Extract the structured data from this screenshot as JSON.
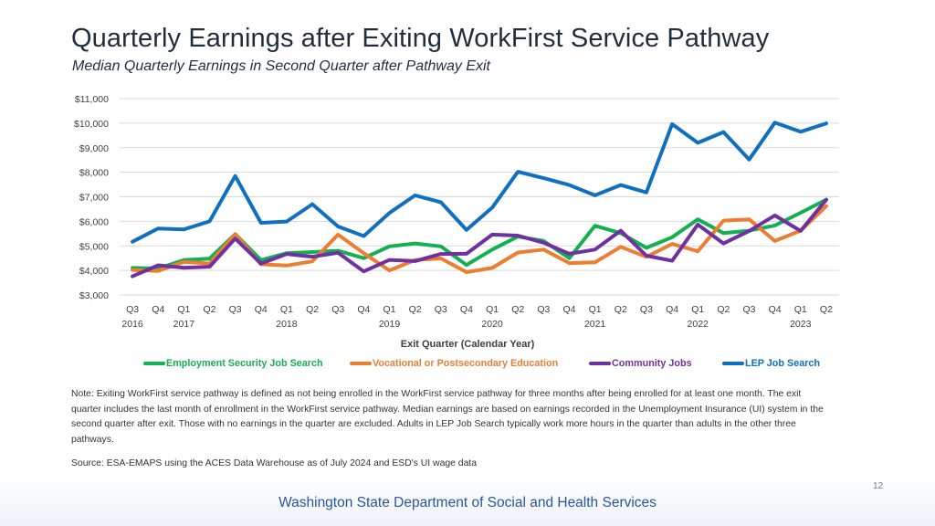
{
  "title": "Quarterly Earnings after Exiting WorkFirst Service Pathway",
  "subtitle": "Median Quarterly Earnings in Second Quarter after Pathway Exit",
  "note": "Note: Exiting WorkFirst service pathway is defined as not being enrolled in the WorkFirst service pathway for three months after being enrolled for at least one month. The exit quarter includes the last month of enrollment in the WorkFirst service pathway. Median earnings are based on earnings recorded in the Unemployment Insurance (UI) system in the second quarter after exit. Those with no earnings in the quarter are excluded. Adults in LEP Job Search typically work more hours in the quarter than adults in the other three pathways.",
  "source": "Source: ESA-EMAPS using the ACES Data Warehouse as of July 2024 and ESD's UI wage data",
  "page_number": "12",
  "footer": "Washington State Department of Social and Health Services",
  "colors": {
    "Employment Security Job Search": "#12b050",
    "Vocational or Postsecondary Education": "#ed7d31",
    "Community Jobs": "#7030a0",
    "LEP Job Search": "#0f6fc0",
    "grid": "#d9d9d9",
    "axis_text": "#404040",
    "footer_text": "#2a55a0",
    "footer_band": "#eef1f7"
  },
  "chart_data": {
    "type": "line",
    "title": "Quarterly Earnings after Exiting WorkFirst Service Pathway",
    "xlabel": "Exit Quarter (Calendar Year)",
    "ylabel": "",
    "ylim": [
      3000,
      11000
    ],
    "yticks": [
      3000,
      4000,
      5000,
      6000,
      7000,
      8000,
      9000,
      10000,
      11000
    ],
    "ytick_labels": [
      "$3,000",
      "$4,000",
      "$5,000",
      "$6,000",
      "$7,000",
      "$8,000",
      "$9,000",
      "$10,000",
      "$11,000"
    ],
    "grid": true,
    "legend": "bottom",
    "categories": [
      "Q3",
      "Q4",
      "Q1",
      "Q2",
      "Q3",
      "Q4",
      "Q1",
      "Q2",
      "Q3",
      "Q4",
      "Q1",
      "Q2",
      "Q3",
      "Q4",
      "Q1",
      "Q2",
      "Q3",
      "Q4",
      "Q1",
      "Q2",
      "Q3",
      "Q4",
      "Q1",
      "Q2",
      "Q3",
      "Q4",
      "Q1",
      "Q2"
    ],
    "year_labels": [
      {
        "index": 0,
        "label": "2016"
      },
      {
        "index": 2,
        "label": "2017"
      },
      {
        "index": 6,
        "label": "2018"
      },
      {
        "index": 10,
        "label": "2019"
      },
      {
        "index": 14,
        "label": "2020"
      },
      {
        "index": 18,
        "label": "2021"
      },
      {
        "index": 22,
        "label": "2022"
      },
      {
        "index": 26,
        "label": "2023"
      }
    ],
    "series": [
      {
        "name": "Employment Security Job Search",
        "values": [
          4100,
          4080,
          4420,
          4480,
          5480,
          4420,
          4700,
          4750,
          4800,
          4500,
          4980,
          5100,
          4980,
          4220,
          4850,
          5380,
          5200,
          4500,
          5820,
          5520,
          4920,
          5350,
          6080,
          5520,
          5620,
          5830,
          6350,
          6880
        ]
      },
      {
        "name": "Vocational or Postsecondary Education",
        "values": [
          4020,
          3980,
          4350,
          4280,
          5480,
          4250,
          4200,
          4370,
          5460,
          4700,
          4000,
          4420,
          4490,
          3930,
          4100,
          4730,
          4850,
          4300,
          4330,
          4960,
          4550,
          5080,
          4780,
          6030,
          6080,
          5200,
          5620,
          6620
        ]
      },
      {
        "name": "Community Jobs",
        "values": [
          3760,
          4210,
          4110,
          4150,
          5300,
          4280,
          4670,
          4560,
          4720,
          3960,
          4430,
          4380,
          4670,
          4680,
          5460,
          5420,
          5130,
          4680,
          4850,
          5620,
          4600,
          4390,
          5870,
          5100,
          5610,
          6240,
          5610,
          6880
        ]
      },
      {
        "name": "LEP Job Search",
        "values": [
          5170,
          5710,
          5670,
          6000,
          7850,
          5940,
          5990,
          6700,
          5790,
          5400,
          6340,
          7060,
          6780,
          5650,
          6560,
          8020,
          7760,
          7480,
          7060,
          7480,
          7180,
          9960,
          9200,
          9640,
          8520,
          10020,
          9650,
          9990
        ]
      }
    ]
  }
}
